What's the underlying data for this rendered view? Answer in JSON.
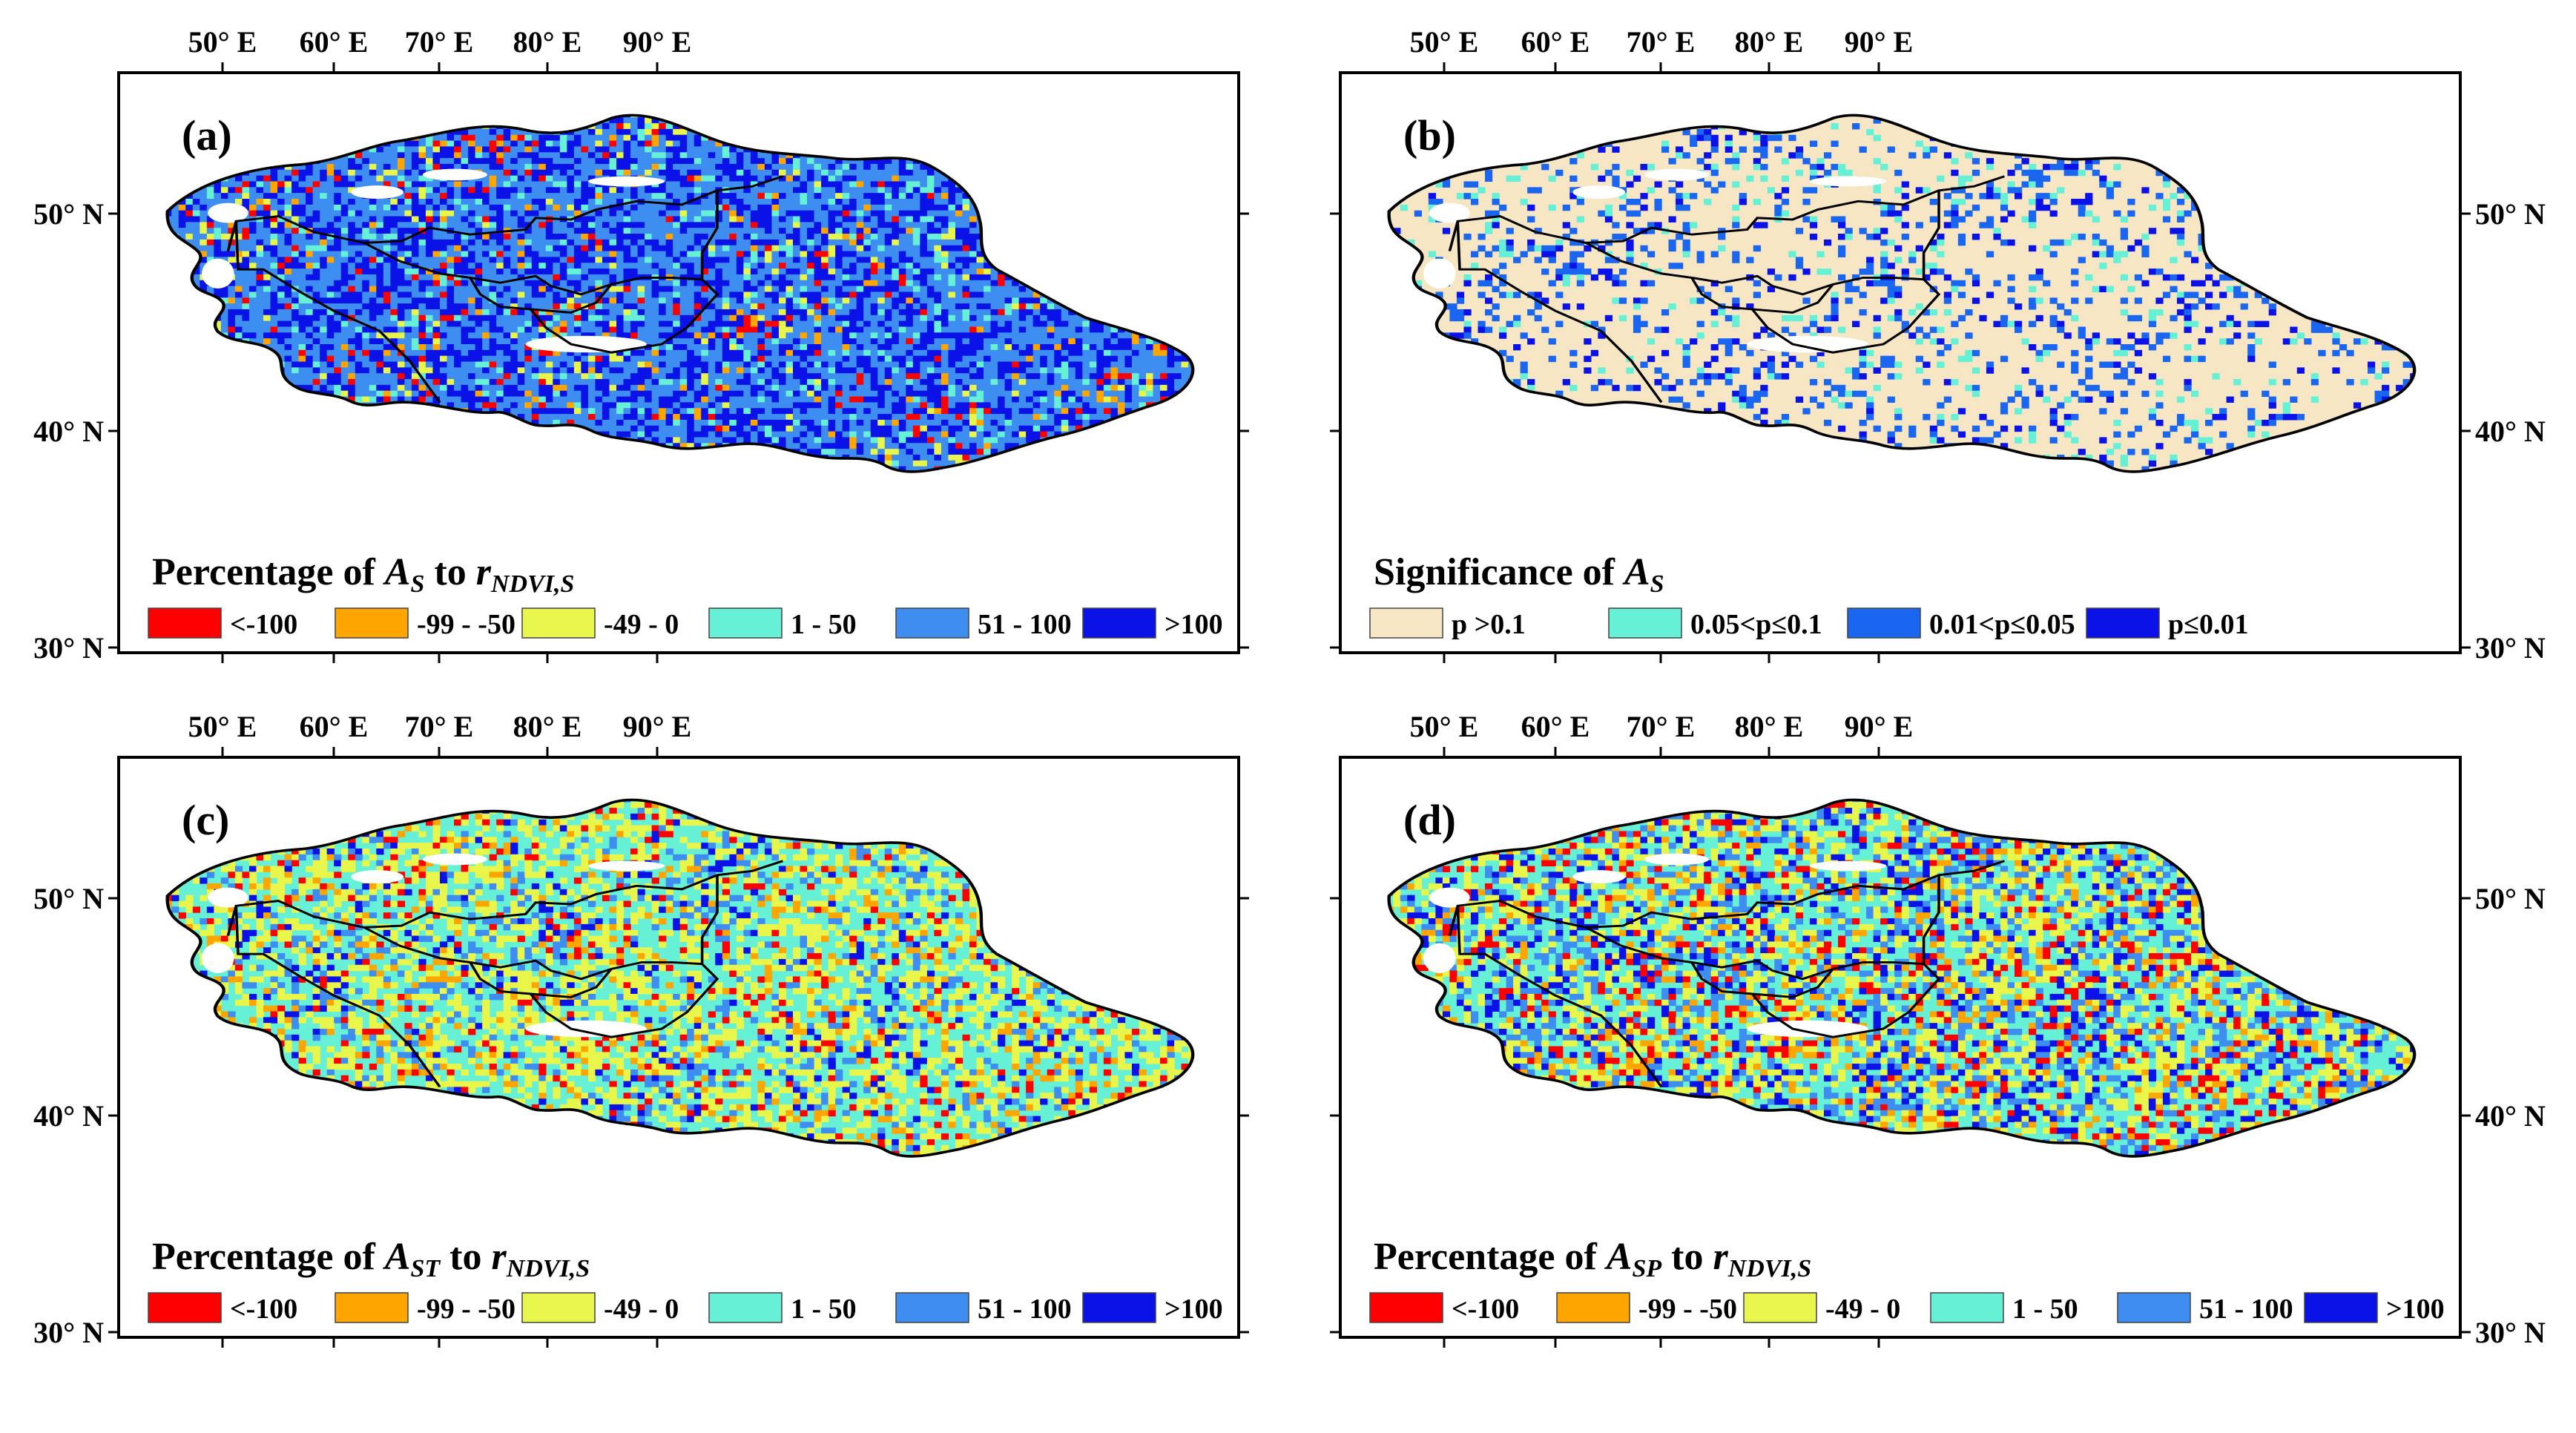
{
  "figure": {
    "lon_ticks": [
      "50° E",
      "60° E",
      "70° E",
      "80° E",
      "90° E"
    ],
    "lat_ticks": [
      "50° N",
      "40° N",
      "30° N"
    ],
    "panels": [
      {
        "id": "a",
        "label": "(a)",
        "caption": {
          "prefix": "Percentage of ",
          "sym": "A",
          "sym_sub": "S",
          "mid": " to ",
          "sym2": "r",
          "sym2_sub": "NDVI,S"
        },
        "scheme": "percent",
        "legend": [
          {
            "label": "<-100",
            "color": "#ff0000"
          },
          {
            "label": "-99 - -50",
            "color": "#ffa500"
          },
          {
            "label": "-49 - 0",
            "color": "#e8f54a"
          },
          {
            "label": "1 - 50",
            "color": "#66f0d6"
          },
          {
            "label": "51 - 100",
            "color": "#3d8ef0"
          },
          {
            "label": ">100",
            "color": "#0a12e8"
          }
        ]
      },
      {
        "id": "b",
        "label": "(b)",
        "caption": {
          "prefix": "Significance of ",
          "sym": "A",
          "sym_sub": "S",
          "mid": "",
          "sym2": "",
          "sym2_sub": ""
        },
        "scheme": "significance",
        "legend": [
          {
            "label": "p >0.1",
            "color": "#f7e6c4"
          },
          {
            "label": "0.05<p≤0.1",
            "color": "#66f0d6"
          },
          {
            "label": "0.01<p≤0.05",
            "color": "#1a66f0"
          },
          {
            "label": "p≤0.01",
            "color": "#0a12e8"
          }
        ]
      },
      {
        "id": "c",
        "label": "(c)",
        "caption": {
          "prefix": "Percentage of ",
          "sym": "A",
          "sym_sub": "ST",
          "mid": " to ",
          "sym2": "r",
          "sym2_sub": "NDVI,S"
        },
        "scheme": "percent",
        "legend": [
          {
            "label": "<-100",
            "color": "#ff0000"
          },
          {
            "label": "-99 - -50",
            "color": "#ffa500"
          },
          {
            "label": "-49 - 0",
            "color": "#e8f54a"
          },
          {
            "label": "1 - 50",
            "color": "#66f0d6"
          },
          {
            "label": "51 - 100",
            "color": "#3d8ef0"
          },
          {
            "label": ">100",
            "color": "#0a12e8"
          }
        ]
      },
      {
        "id": "d",
        "label": "(d)",
        "caption": {
          "prefix": "Percentage of ",
          "sym": "A",
          "sym_sub": "SP",
          "mid": " to ",
          "sym2": "r",
          "sym2_sub": "NDVI,S"
        },
        "scheme": "percent",
        "legend": [
          {
            "label": "<-100",
            "color": "#ff0000"
          },
          {
            "label": "-99 - -50",
            "color": "#ffa500"
          },
          {
            "label": "-49 - 0",
            "color": "#e8f54a"
          },
          {
            "label": "1 - 50",
            "color": "#66f0d6"
          },
          {
            "label": "51 - 100",
            "color": "#3d8ef0"
          },
          {
            "label": ">100",
            "color": "#0a12e8"
          }
        ]
      }
    ]
  }
}
